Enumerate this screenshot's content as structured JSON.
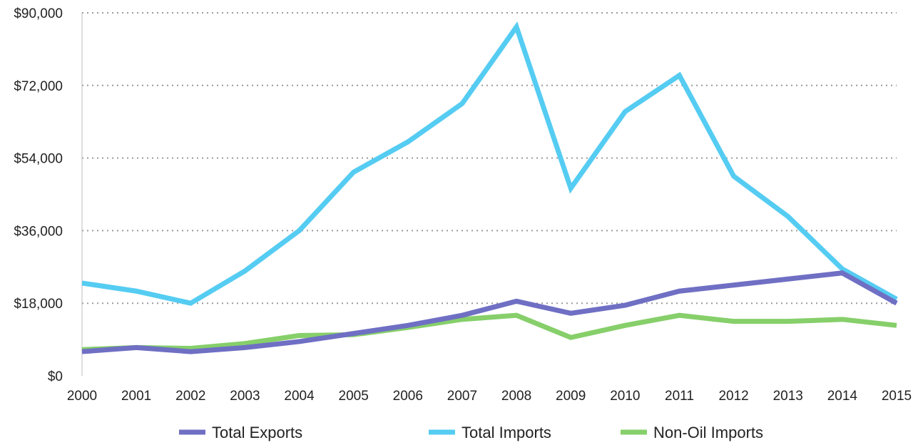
{
  "chart_data": {
    "type": "line",
    "title": "",
    "xlabel": "",
    "ylabel": "",
    "categories": [
      "2000",
      "2001",
      "2002",
      "2003",
      "2004",
      "2005",
      "2006",
      "2007",
      "2008",
      "2009",
      "2010",
      "2011",
      "2012",
      "2013",
      "2014",
      "2015"
    ],
    "ylim": [
      0,
      90000
    ],
    "yticks": [
      0,
      18000,
      36000,
      54000,
      72000,
      90000
    ],
    "ytick_labels": [
      "$0",
      "$18,000",
      "$36,000",
      "$54,000",
      "$72,000",
      "$90,000"
    ],
    "grid": "horizontal dotted",
    "legend_position": "bottom",
    "series": [
      {
        "name": "Total Exports",
        "color": "#6f6fc4",
        "values": [
          6000,
          7000,
          6000,
          7000,
          8500,
          10500,
          12500,
          15000,
          18500,
          15500,
          17500,
          21000,
          22500,
          24000,
          25500,
          18000
        ]
      },
      {
        "name": "Total Imports",
        "color": "#55ccf2",
        "values": [
          23000,
          21000,
          18000,
          26000,
          36000,
          50500,
          58000,
          67500,
          86500,
          46500,
          65500,
          74500,
          49500,
          39500,
          26500,
          19000
        ]
      },
      {
        "name": "Non-Oil Imports",
        "color": "#86cf6a",
        "values": [
          6500,
          7000,
          6800,
          8000,
          10000,
          10200,
          12000,
          14000,
          15000,
          9500,
          12500,
          15000,
          13500,
          13500,
          14000,
          12500
        ]
      }
    ]
  }
}
